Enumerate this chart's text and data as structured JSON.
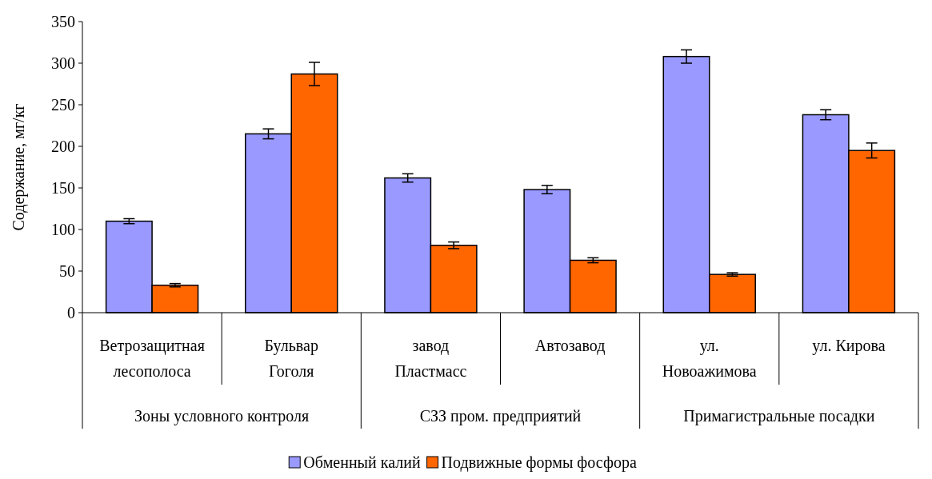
{
  "chart_data": {
    "type": "bar",
    "ylabel": "Содержание, мг/кг",
    "categories": [
      "Ветрозащитная лесополоса",
      "Бульвар Гоголя",
      "завод Пластмасс",
      "Автозавод",
      "ул. Новоажимова",
      "ул. Кирова"
    ],
    "series": [
      {
        "name": "Обменный калий",
        "color": "#9999ff",
        "values": [
          110,
          215,
          162,
          148,
          308,
          238
        ],
        "errors": [
          3,
          6,
          5,
          5,
          8,
          6
        ]
      },
      {
        "name": "Подвижные формы фосфора",
        "color": "#ff6600",
        "values": [
          33,
          287,
          81,
          63,
          46,
          195
        ],
        "errors": [
          2,
          14,
          4,
          3,
          2,
          9
        ]
      }
    ],
    "annotations": [
      "Зоны условного контроля",
      "СЗЗ пром. предприятий",
      "Примагистральные посадки"
    ],
    "ylim": [
      0,
      350
    ],
    "yticks": [
      0,
      50,
      100,
      150,
      200,
      250,
      300,
      350
    ],
    "grid": false,
    "legend": "bottom"
  }
}
